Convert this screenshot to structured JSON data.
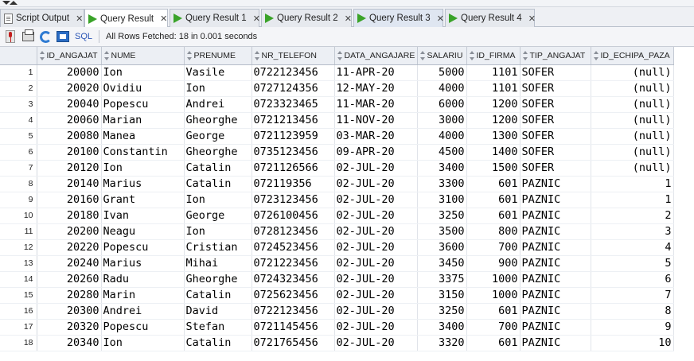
{
  "tabs": [
    {
      "label": "Script Output",
      "icon": "script-icon"
    },
    {
      "label": "Query Result",
      "icon": "play-icon"
    },
    {
      "label": "Query Result 1",
      "icon": "play-icon"
    },
    {
      "label": "Query Result 2",
      "icon": "play-icon"
    },
    {
      "label": "Query Result 3",
      "icon": "play-icon"
    },
    {
      "label": "Query Result 4",
      "icon": "play-icon"
    }
  ],
  "toolbar": {
    "sql_label": "SQL",
    "status": "All Rows Fetched: 18 in 0.001 seconds"
  },
  "grid": {
    "columns": [
      "ID_ANGAJAT",
      "NUME",
      "PRENUME",
      "NR_TELEFON",
      "DATA_ANGAJARE",
      "SALARIU",
      "ID_FIRMA",
      "TIP_ANGAJAT",
      "ID_ECHIPA_PAZA"
    ],
    "rows": [
      [
        "1",
        "20000",
        "Ion",
        "Vasile",
        "0722123456",
        "11-APR-20",
        "5000",
        "1101",
        "SOFER",
        "(null)"
      ],
      [
        "2",
        "20020",
        "Ovidiu",
        "Ion",
        "0727124356",
        "12-MAY-20",
        "4000",
        "1101",
        "SOFER",
        "(null)"
      ],
      [
        "3",
        "20040",
        "Popescu",
        "Andrei",
        "0723323465",
        "11-MAR-20",
        "6000",
        "1200",
        "SOFER",
        "(null)"
      ],
      [
        "4",
        "20060",
        "Marian",
        "Gheorghe",
        "0721213456",
        "11-NOV-20",
        "3000",
        "1200",
        "SOFER",
        "(null)"
      ],
      [
        "5",
        "20080",
        "Manea",
        "George",
        "0721123959",
        "03-MAR-20",
        "4000",
        "1300",
        "SOFER",
        "(null)"
      ],
      [
        "6",
        "20100",
        "Constantin",
        "Gheorghe",
        "0735123456",
        "09-APR-20",
        "4500",
        "1400",
        "SOFER",
        "(null)"
      ],
      [
        "7",
        "20120",
        "Ion",
        "Catalin",
        "0721126566",
        "02-JUL-20",
        "3400",
        "1500",
        "SOFER",
        "(null)"
      ],
      [
        "8",
        "20140",
        "Marius",
        "Catalin",
        "072119356",
        "02-JUL-20",
        "3300",
        "601",
        "PAZNIC",
        "1"
      ],
      [
        "9",
        "20160",
        "Grant",
        "Ion",
        "0723123456",
        "02-JUL-20",
        "3100",
        "601",
        "PAZNIC",
        "1"
      ],
      [
        "10",
        "20180",
        "Ivan",
        "George",
        "0726100456",
        "02-JUL-20",
        "3250",
        "601",
        "PAZNIC",
        "2"
      ],
      [
        "11",
        "20200",
        "Neagu",
        "Ion",
        "0728123456",
        "02-JUL-20",
        "3500",
        "800",
        "PAZNIC",
        "3"
      ],
      [
        "12",
        "20220",
        "Popescu",
        "Cristian",
        "0724523456",
        "02-JUL-20",
        "3600",
        "700",
        "PAZNIC",
        "4"
      ],
      [
        "13",
        "20240",
        "Marius",
        "Mihai",
        "0721223456",
        "02-JUL-20",
        "3450",
        "900",
        "PAZNIC",
        "5"
      ],
      [
        "14",
        "20260",
        "Radu",
        "Gheorghe",
        "0724323456",
        "02-JUL-20",
        "3375",
        "1000",
        "PAZNIC",
        "6"
      ],
      [
        "15",
        "20280",
        "Marin",
        "Catalin",
        "0725623456",
        "02-JUL-20",
        "3150",
        "1000",
        "PAZNIC",
        "7"
      ],
      [
        "16",
        "20300",
        "Andrei",
        "David",
        "0722123456",
        "02-JUL-20",
        "3250",
        "601",
        "PAZNIC",
        "8"
      ],
      [
        "17",
        "20320",
        "Popescu",
        "Stefan",
        "0721145456",
        "02-JUL-20",
        "3400",
        "700",
        "PAZNIC",
        "9"
      ],
      [
        "18",
        "20340",
        "Ion",
        "Catalin",
        "0721765456",
        "02-JUL-20",
        "3320",
        "601",
        "PAZNIC",
        "10"
      ]
    ]
  }
}
